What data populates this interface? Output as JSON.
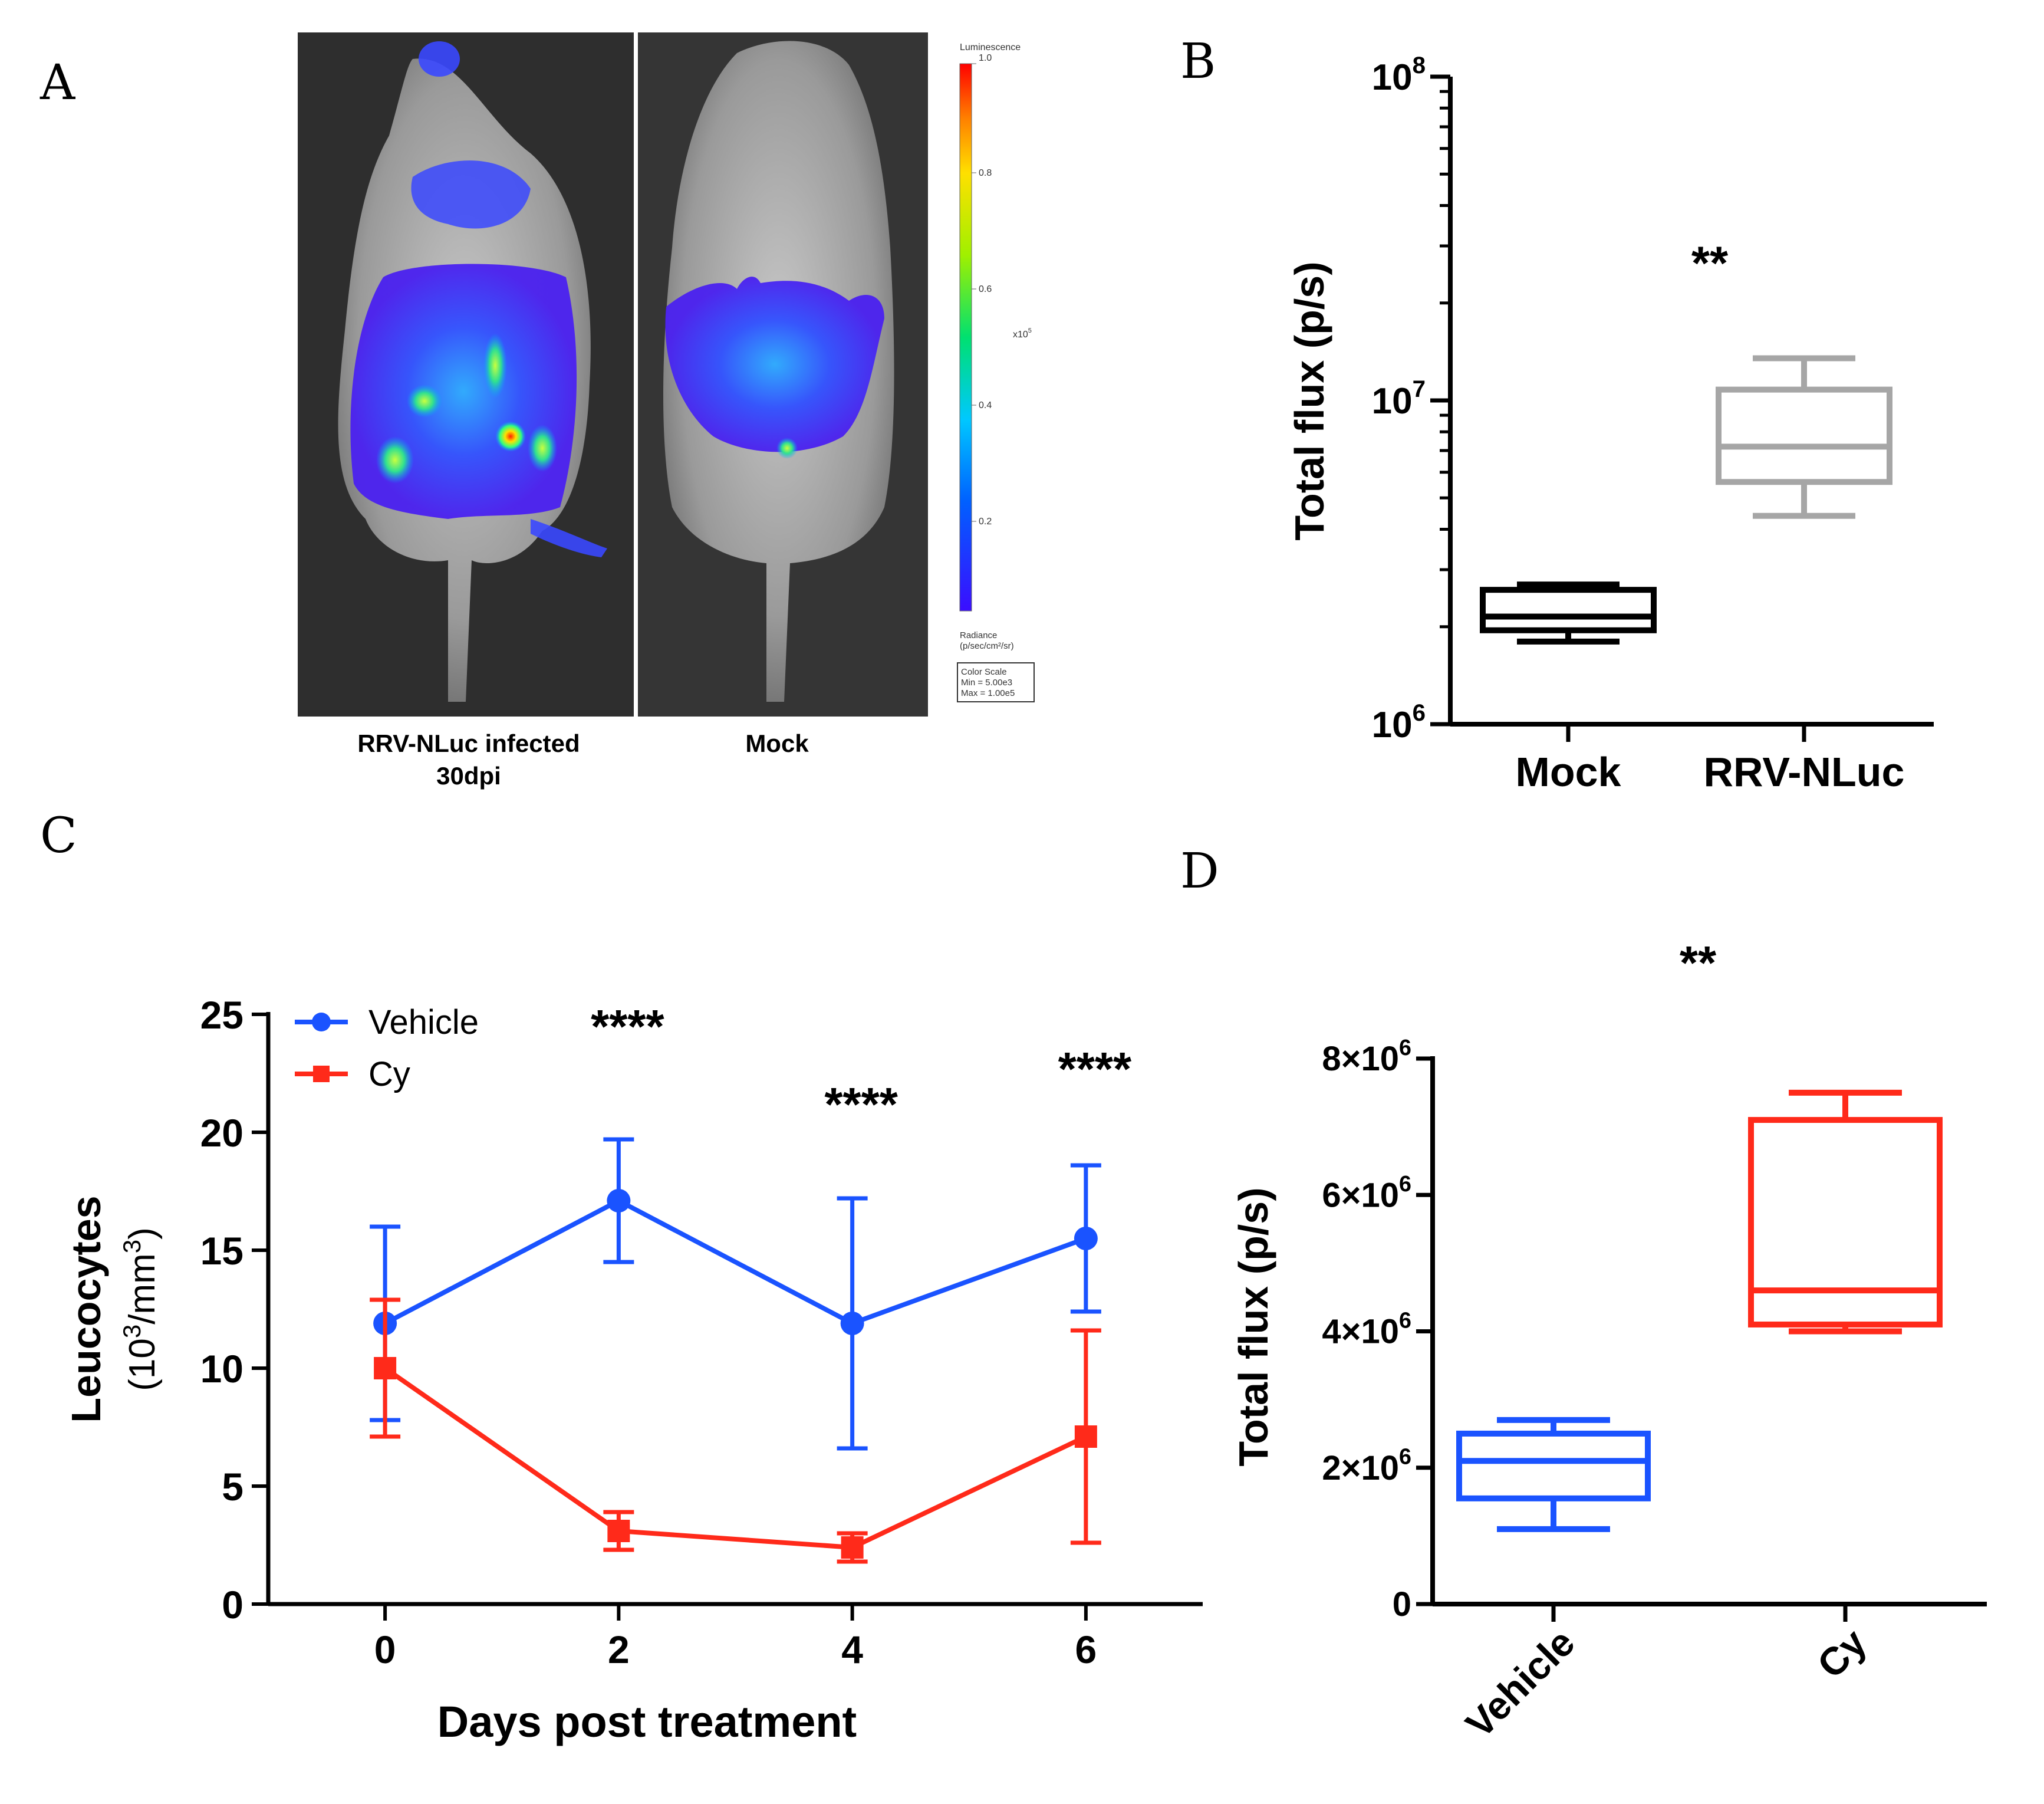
{
  "panels": {
    "A": {
      "letter": "A",
      "image_labels": [
        "RRV-NLuc infected",
        "30dpi",
        "Mock"
      ],
      "scale": {
        "title": "Luminescence",
        "ticks": [
          "1.0",
          "0.8",
          "0.6",
          "0.4",
          "0.2"
        ],
        "multiplier": "x10",
        "multiplier_exp": "5",
        "units_line1": "Radiance",
        "units_line2": "(p/sec/cm²/sr)",
        "box_line1": "Color Scale",
        "box_line2": "Min = 5.00e3",
        "box_line3": "Max = 1.00e5"
      }
    },
    "B": {
      "letter": "B"
    },
    "C": {
      "letter": "C"
    },
    "D": {
      "letter": "D"
    }
  },
  "chart_data": [
    {
      "panel": "B",
      "type": "box",
      "ylabel": "Total flux (p/s)",
      "yscale": "log",
      "ylim": [
        1000000,
        100000000
      ],
      "yticks": [
        {
          "value": 1000000,
          "base": "10",
          "exp": "6"
        },
        {
          "value": 10000000,
          "base": "10",
          "exp": "7"
        },
        {
          "value": 100000000,
          "base": "10",
          "exp": "8"
        }
      ],
      "categories": [
        "Mock",
        "RRV-NLuc"
      ],
      "boxes": [
        {
          "category": "Mock",
          "min": 1800000,
          "q1": 1950000,
          "median": 2150000,
          "q3": 2600000,
          "max": 2700000,
          "color": "#000000"
        },
        {
          "category": "RRV-NLuc",
          "min": 4400000,
          "q1": 5600000,
          "median": 7200000,
          "q3": 10800000,
          "max": 13500000,
          "color": "#a6a6a6"
        }
      ],
      "annotations": [
        {
          "text": "**",
          "category": "RRV-NLuc",
          "y": 28000000
        }
      ]
    },
    {
      "panel": "C",
      "type": "line",
      "xlabel": "Days post treatment",
      "ylabel_line1": "Leucocytes",
      "ylabel_line2_pre": "(10",
      "ylabel_line2_sup1": "3",
      "ylabel_line2_mid": "/mm",
      "ylabel_line2_sup2": "3",
      "ylabel_line2_post": ")",
      "x": [
        0,
        2,
        4,
        6
      ],
      "xlim": [
        -1,
        7
      ],
      "ylim": [
        0,
        25
      ],
      "yticks": [
        0,
        5,
        10,
        15,
        20,
        25
      ],
      "xticks": [
        0,
        2,
        4,
        6
      ],
      "legend": "top-left",
      "series": [
        {
          "name": "Vehicle",
          "color": "#1a53ff",
          "marker": "circle",
          "values": [
            11.9,
            17.1,
            11.9,
            15.5
          ],
          "error": [
            4.1,
            2.6,
            5.3,
            3.1
          ],
          "error_dir": "both"
        },
        {
          "name": "Cy",
          "color": "#ff2a1a",
          "marker": "square",
          "values": [
            10.0,
            3.1,
            2.4,
            7.1
          ],
          "error": [
            2.9,
            0.8,
            0.6,
            4.5
          ],
          "error_dir": "both"
        }
      ],
      "annotations": [
        {
          "text": "****",
          "x": 2,
          "y": 24.8
        },
        {
          "text": "****",
          "x": 4,
          "y": 21.5
        },
        {
          "text": "****",
          "x": 6,
          "y": 23.0
        }
      ]
    },
    {
      "panel": "D",
      "type": "box",
      "ylabel": "Total flux (p/s)",
      "yscale": "linear",
      "ylim": [
        0,
        8000000
      ],
      "yticks": [
        {
          "value": 0,
          "label": "0"
        },
        {
          "value": 2000000,
          "label": "2×10",
          "exp": "6"
        },
        {
          "value": 4000000,
          "label": "4×10",
          "exp": "6"
        },
        {
          "value": 6000000,
          "label": "6×10",
          "exp": "6"
        },
        {
          "value": 8000000,
          "label": "8×10",
          "exp": "6"
        }
      ],
      "categories": [
        "Vehicle",
        "Cy"
      ],
      "boxes": [
        {
          "category": "Vehicle",
          "min": 1100000,
          "q1": 1550000,
          "median": 2100000,
          "q3": 2500000,
          "max": 2700000,
          "color": "#1a53ff"
        },
        {
          "category": "Cy",
          "min": 4000000,
          "q1": 4100000,
          "median": 4600000,
          "q3": 7100000,
          "max": 7500000,
          "color": "#ff2a1a"
        }
      ],
      "annotations": [
        {
          "text": "**",
          "y": 9500000
        }
      ]
    }
  ]
}
